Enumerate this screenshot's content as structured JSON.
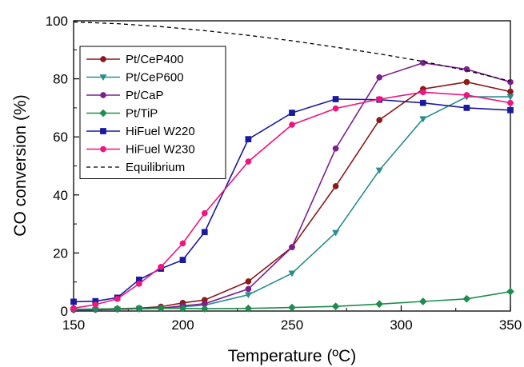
{
  "chart_data": {
    "type": "line",
    "title": "",
    "xlabel": "Temperature (ºC)",
    "ylabel": "CO conversion (%)",
    "xlim": [
      150,
      350
    ],
    "ylim": [
      0,
      100
    ],
    "xticks": [
      150,
      200,
      250,
      300,
      350
    ],
    "yticks": [
      0,
      20,
      40,
      60,
      80,
      100
    ],
    "legend_position": "top-left",
    "series": [
      {
        "name": "Pt/CeP400",
        "color": "#8B1A1A",
        "marker": "circle",
        "x": [
          150,
          160,
          170,
          180,
          190,
          200,
          210,
          230,
          250,
          270,
          290,
          310,
          330,
          350
        ],
        "y": [
          0.5,
          0.6,
          0.8,
          1.0,
          1.5,
          2.8,
          3.8,
          10.2,
          22.0,
          43.0,
          65.8,
          76.5,
          78.9,
          75.6
        ]
      },
      {
        "name": "Pt/CeP600",
        "color": "#2A8E8E",
        "marker": "triangle-down",
        "x": [
          150,
          160,
          170,
          180,
          190,
          200,
          210,
          230,
          250,
          270,
          290,
          310,
          330,
          350
        ],
        "y": [
          0.3,
          0.4,
          0.6,
          0.8,
          1.0,
          1.5,
          2.0,
          5.6,
          13.0,
          27.0,
          48.5,
          66.2,
          73.8,
          73.8
        ]
      },
      {
        "name": "Pt/CaP",
        "color": "#7B1F8E",
        "marker": "circle",
        "x": [
          150,
          160,
          170,
          180,
          190,
          200,
          210,
          230,
          250,
          270,
          290,
          310,
          330,
          350
        ],
        "y": [
          0.4,
          0.5,
          0.6,
          0.8,
          1.0,
          1.8,
          2.5,
          7.6,
          22.0,
          56.0,
          80.5,
          85.5,
          83.3,
          78.9
        ]
      },
      {
        "name": "Pt/TiP",
        "color": "#1E8C4E",
        "marker": "diamond",
        "x": [
          150,
          160,
          170,
          180,
          190,
          200,
          210,
          230,
          250,
          270,
          290,
          310,
          330,
          350
        ],
        "y": [
          0.6,
          0.7,
          0.8,
          0.8,
          0.9,
          0.9,
          0.8,
          0.9,
          1.2,
          1.6,
          2.4,
          3.3,
          4.2,
          6.7
        ]
      },
      {
        "name": "HiFuel W220",
        "color": "#1A1A9E",
        "marker": "square",
        "x": [
          150,
          160,
          170,
          180,
          190,
          200,
          210,
          230,
          250,
          270,
          290,
          310,
          330,
          350
        ],
        "y": [
          3.2,
          3.4,
          4.6,
          10.8,
          14.6,
          17.6,
          27.2,
          59.2,
          68.3,
          73.0,
          72.8,
          71.7,
          70.0,
          69.2
        ]
      },
      {
        "name": "HiFuel W230",
        "color": "#F0147E",
        "marker": "circle",
        "x": [
          150,
          160,
          170,
          180,
          190,
          200,
          210,
          230,
          250,
          270,
          290,
          310,
          330,
          350
        ],
        "y": [
          1.0,
          2.2,
          4.2,
          9.4,
          15.2,
          23.3,
          33.7,
          51.5,
          64.2,
          69.8,
          73.0,
          75.4,
          74.4,
          71.7
        ]
      },
      {
        "name": "Equilibrium",
        "color": "#000000",
        "marker": "none",
        "dashed": true,
        "x": [
          150,
          170,
          190,
          210,
          230,
          250,
          270,
          290,
          310,
          330,
          350
        ],
        "y": [
          99.6,
          99.0,
          98.0,
          96.6,
          95.0,
          93.1,
          90.9,
          88.6,
          86.0,
          82.8,
          79.2
        ]
      }
    ]
  }
}
